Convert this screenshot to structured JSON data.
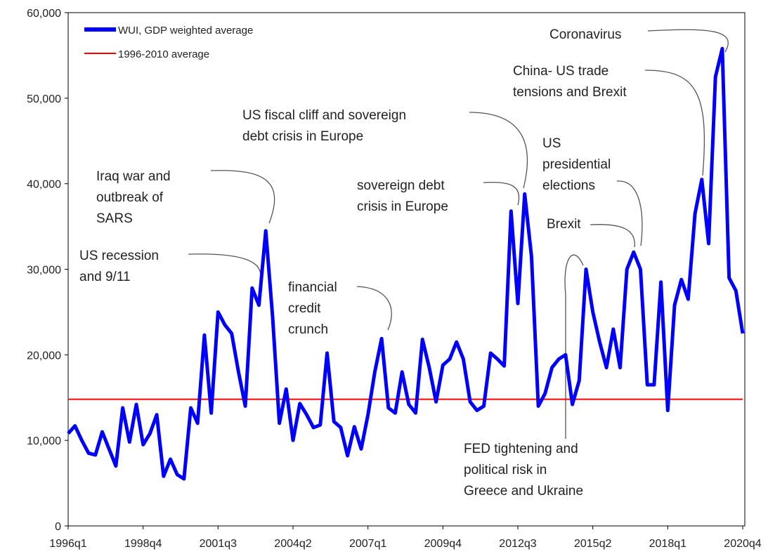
{
  "chart_data": {
    "type": "line",
    "categories": [
      "1996q1",
      null,
      null,
      null,
      null,
      null,
      null,
      null,
      null,
      null,
      null,
      "1998q4",
      null,
      null,
      null,
      null,
      null,
      null,
      null,
      null,
      null,
      null,
      "2001q3",
      null,
      null,
      null,
      null,
      null,
      null,
      null,
      null,
      null,
      null,
      "2004q2",
      null,
      null,
      null,
      null,
      null,
      null,
      null,
      null,
      null,
      null,
      "2007q1",
      null,
      null,
      null,
      null,
      null,
      null,
      null,
      null,
      null,
      null,
      "2009q4",
      null,
      null,
      null,
      null,
      null,
      null,
      null,
      null,
      null,
      null,
      "2012q3",
      null,
      null,
      null,
      null,
      null,
      null,
      null,
      null,
      null,
      null,
      "2015q2",
      null,
      null,
      null,
      null,
      null,
      null,
      null,
      null,
      null,
      null,
      "2018q1",
      null,
      null,
      null,
      null,
      null,
      null,
      null,
      null,
      null,
      null,
      "2020q4"
    ],
    "series": [
      {
        "name": "WUI, GDP weighted average",
        "color": "#0000ff",
        "values": [
          10800,
          11700,
          10000,
          8500,
          8300,
          11000,
          9000,
          7000,
          13800,
          9800,
          14200,
          9500,
          10800,
          13000,
          5800,
          7800,
          6000,
          5500,
          13800,
          12000,
          22300,
          13200,
          25000,
          23500,
          22500,
          18000,
          14000,
          27800,
          25800,
          34500,
          24500,
          12000,
          16000,
          10000,
          14300,
          13000,
          11500,
          11800,
          20200,
          12200,
          11500,
          8200,
          11600,
          9000,
          13000,
          18000,
          21900,
          13800,
          13200,
          18000,
          14200,
          13200,
          21800,
          18500,
          14500,
          18800,
          19500,
          21500,
          19500,
          14500,
          13500,
          14000,
          20200,
          19500,
          18700,
          36800,
          26000,
          38800,
          31500,
          14000,
          15500,
          18500,
          19500,
          20000,
          14200,
          17000,
          30000,
          25000,
          21500,
          18500,
          23000,
          18500,
          30000,
          32000,
          30000,
          16500,
          16500,
          28500,
          13500,
          25800,
          28800,
          26500,
          36500,
          40500,
          33000,
          52500,
          55800,
          29000,
          27500,
          22500
        ]
      },
      {
        "name": "1996-2010 average",
        "color": "#ff0000",
        "value": 14800
      }
    ],
    "ylim": [
      0,
      60000
    ],
    "yticks": [
      0,
      {
        "value": 10000,
        "label": "10,000"
      },
      {
        "value": 20000,
        "label": "20,000"
      },
      {
        "value": 30000,
        "label": "30,000"
      },
      {
        "value": 40000,
        "label": "40,000"
      },
      {
        "value": 50000,
        "label": "50,000"
      },
      {
        "value": 60000,
        "label": "60,000"
      }
    ],
    "legend": "upper left",
    "annotations": [
      {
        "text": [
          "Iraq war and",
          "outbreak of",
          "SARS"
        ]
      },
      {
        "text": [
          "US recession",
          "and 9/11"
        ]
      },
      {
        "text": [
          "financial",
          "credit",
          "crunch"
        ]
      },
      {
        "text": [
          "US fiscal cliff and sovereign",
          "debt crisis in Europe"
        ]
      },
      {
        "text": [
          "sovereign debt",
          "crisis in Europe"
        ]
      },
      {
        "text": [
          "US",
          "presidential",
          "elections"
        ]
      },
      {
        "text": [
          "Brexit"
        ]
      },
      {
        "text": [
          "China- US trade",
          "tensions and Brexit"
        ]
      },
      {
        "text": [
          "Coronavirus"
        ]
      },
      {
        "text": [
          "FED tightening and",
          "political risk in",
          "Greece and Ukraine"
        ]
      }
    ]
  }
}
